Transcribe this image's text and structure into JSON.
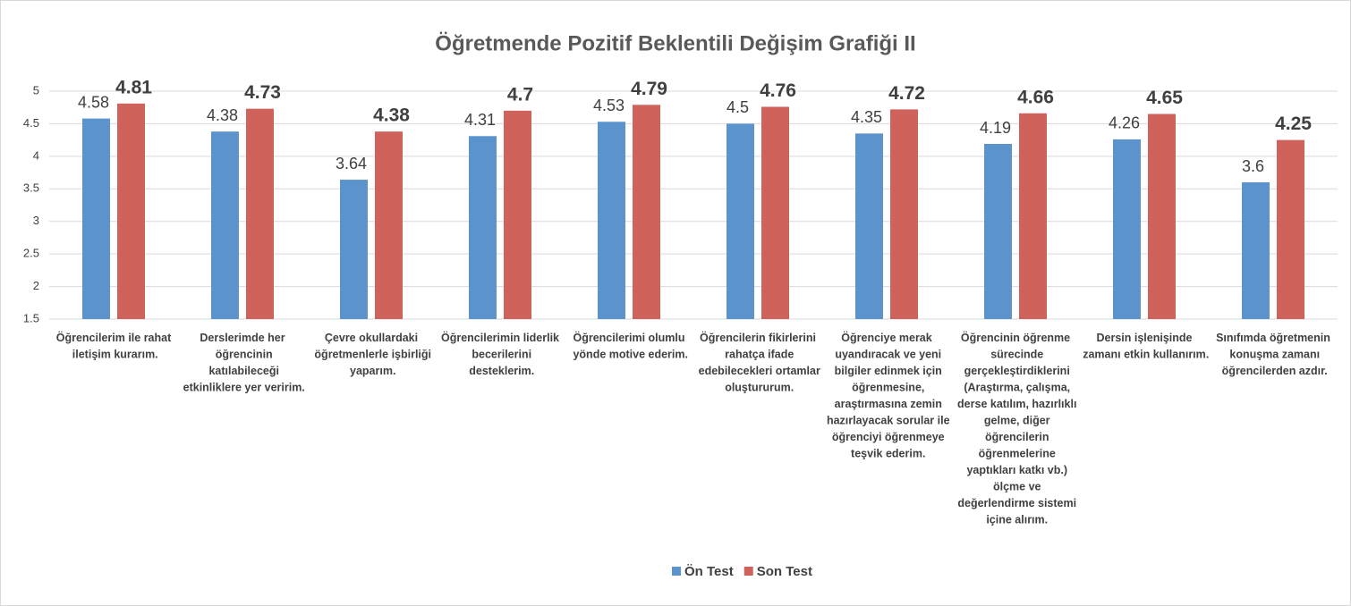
{
  "chart_data": {
    "type": "bar",
    "title": "Öğretmende Pozitif Beklentili Değişim Grafiği II",
    "categories": [
      "Öğrencilerim ile rahat iletişim kurarım.",
      "Derslerimde her öğrencinin katılabileceği etkinliklere yer veririm.",
      "Çevre okullardaki öğretmenlerle işbirliği yaparım.",
      "Öğrencilerimin liderlik becerilerini desteklerim.",
      "Öğrencilerimi olumlu yönde motive ederim.",
      "Öğrencilerin fikirlerini rahatça ifade edebilecekleri ortamlar oluştururum.",
      "Öğrenciye merak uyandıracak ve yeni bilgiler edinmek için öğrenmesine, araştırmasına zemin hazırlayacak sorular ile öğrenciyi öğrenmeye teşvik ederim.",
      "Öğrencinin öğrenme sürecinde gerçekleştirdiklerini (Araştırma, çalışma, derse katılım, hazırlıklı gelme, diğer öğrencilerin öğrenmelerine yaptıkları katkı vb.) ölçme ve değerlendirme sistemi içine alırım.",
      "Dersin işlenişinde zamanı etkin kullanırım.",
      "Sınıfımda öğretmenin konuşma zamanı öğrencilerden azdır."
    ],
    "series": [
      {
        "name": "Ön Test",
        "color": "#5b93cd",
        "values": [
          4.58,
          4.38,
          3.64,
          4.31,
          4.53,
          4.5,
          4.35,
          4.19,
          4.26,
          3.6
        ]
      },
      {
        "name": "Son Test",
        "color": "#cf625a",
        "values": [
          4.81,
          4.73,
          4.38,
          4.7,
          4.79,
          4.76,
          4.72,
          4.66,
          4.65,
          4.25
        ]
      }
    ],
    "ylim": [
      1.5,
      5
    ],
    "yticks": [
      1.5,
      2,
      2.5,
      3,
      3.5,
      4,
      4.5,
      5
    ],
    "grid": true,
    "legend": "bottom"
  }
}
